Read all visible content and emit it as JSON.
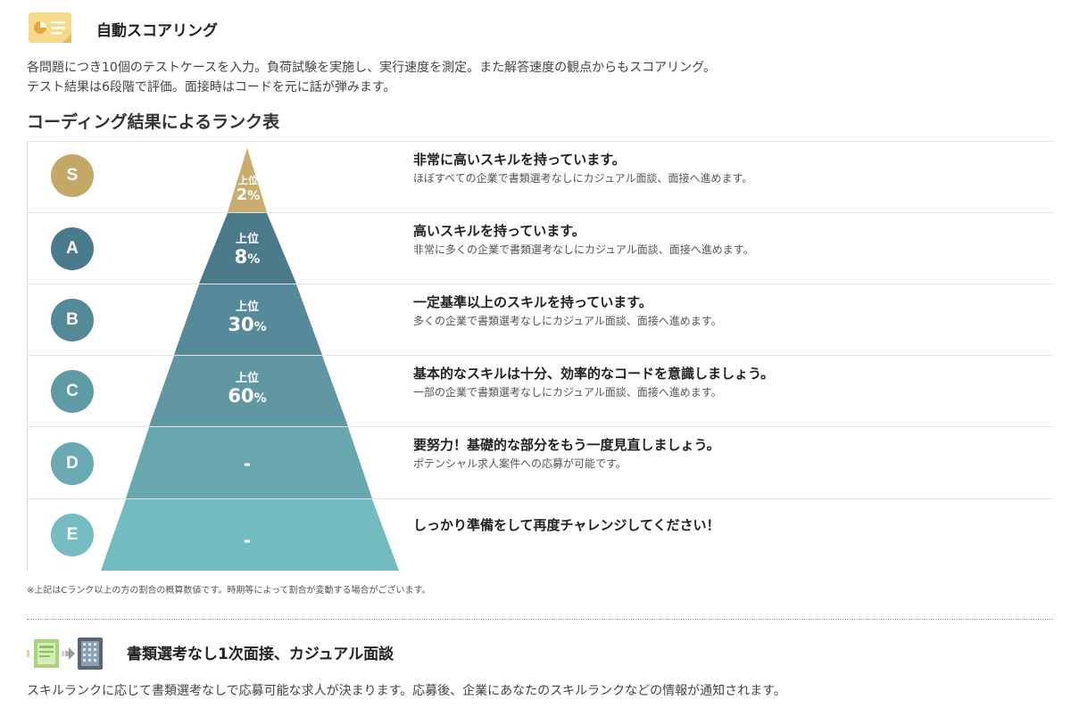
{
  "scoring": {
    "title": "自動スコアリング",
    "icon": "chart-card-icon",
    "lines": [
      "各問題につき10個のテストケースを入力。負荷試験を実施し、実行速度を測定。また解答速度の観点からもスコアリング。",
      "テスト結果は6段階で評価。面接時はコードを元に話が弾みます。"
    ]
  },
  "rank_table": {
    "title": "コーディング結果によるランク表",
    "label_prefix": "上位",
    "ranks": [
      {
        "letter": "S",
        "color": "#c4a865",
        "tier_color": "#c8ad6f",
        "percent": "2",
        "unit": "%",
        "dash": "",
        "heading": "非常に高いスキルを持っています。",
        "sub": "ほぼすべての企業で書類選考なしにカジュアル面談、面接へ進めます。"
      },
      {
        "letter": "A",
        "color": "#4a7b8c",
        "tier_color": "#4b7b8b",
        "percent": "8",
        "unit": "%",
        "dash": "",
        "heading": "高いスキルを持っています。",
        "sub": "非常に多くの企業で書類選考なしにカジュアル面談、面接へ進めます。"
      },
      {
        "letter": "B",
        "color": "#548a97",
        "tier_color": "#56899a",
        "percent": "30",
        "unit": "%",
        "dash": "",
        "heading": "一定基準以上のスキルを持っています。",
        "sub": "多くの企業で書類選考なしにカジュアル面談、面接へ進めます。"
      },
      {
        "letter": "C",
        "color": "#5f9ba4",
        "tier_color": "#6097a3",
        "percent": "60",
        "unit": "%",
        "dash": "",
        "heading": "基本的なスキルは十分、効率的なコードを意識しましょう。",
        "sub": "一部の企業で書類選考なしにカジュアル面談、面接へ進めます。"
      },
      {
        "letter": "D",
        "color": "#69a9b1",
        "tier_color": "#67a7ae",
        "percent": "",
        "unit": "",
        "dash": "-",
        "heading": "要努力！基礎的な部分をもう一度見直しましょう。",
        "sub": "ポテンシャル求人案件への応募が可能です。"
      },
      {
        "letter": "E",
        "color": "#75bdc1",
        "tier_color": "#72bcc0",
        "percent": "",
        "unit": "",
        "dash": "-",
        "heading": "しっかり準備をして再度チャレンジしてください！",
        "sub": ""
      }
    ],
    "note": "※上記はCランク以上の方の割合の概算数値です。時期等によって割合が変動する場合がございます。"
  },
  "interview": {
    "title": "書類選考なし1次面接、カジュアル面談",
    "icons": [
      "document-icon",
      "arrow-right-icon",
      "building-icon"
    ],
    "line": "スキルランクに応じて書類選考なしで応募可能な求人が決まります。応募後、企業にあなたのスキルランクなどの情報が通知されます。"
  }
}
